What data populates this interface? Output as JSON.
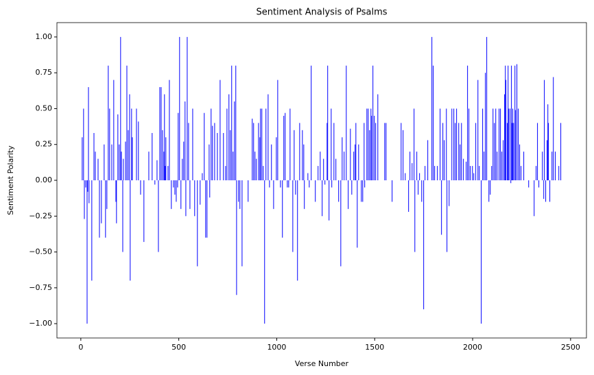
{
  "chart_data": {
    "type": "bar",
    "title": "Sentiment Analysis of Psalms",
    "xlabel": "Verse Number",
    "ylabel": "Sentiment Polarity",
    "color": "#0000ff",
    "xlim": [
      -122,
      2581
    ],
    "ylim": [
      -1.1,
      1.1
    ],
    "xticks": [
      0,
      500,
      1000,
      1500,
      2000,
      2500
    ],
    "yticks": [
      {
        "value": -1,
        "label": "−1.00"
      },
      {
        "value": -0.75,
        "label": "−0.75"
      },
      {
        "value": -0.5,
        "label": "−0.50"
      },
      {
        "value": -0.25,
        "label": "−0.25"
      },
      {
        "value": 0,
        "label": "0.00"
      },
      {
        "value": 0.25,
        "label": "0.25"
      },
      {
        "value": 0.5,
        "label": "0.50"
      },
      {
        "value": 0.75,
        "label": "0.75"
      },
      {
        "value": 1,
        "label": "1.00"
      }
    ],
    "x": [
      7,
      14,
      18,
      25,
      32,
      35,
      39,
      42,
      56,
      67,
      74,
      88,
      95,
      105,
      119,
      126,
      133,
      140,
      147,
      158,
      168,
      179,
      182,
      189,
      196,
      203,
      207,
      214,
      217,
      228,
      235,
      242,
      249,
      252,
      259,
      263,
      284,
      294,
      305,
      322,
      347,
      364,
      378,
      389,
      396,
      403,
      410,
      417,
      424,
      427,
      431,
      434,
      445,
      452,
      462,
      473,
      480,
      487,
      494,
      497,
      504,
      511,
      518,
      525,
      532,
      536,
      543,
      550,
      557,
      571,
      581,
      595,
      609,
      620,
      630,
      637,
      644,
      655,
      658,
      665,
      672,
      683,
      697,
      711,
      728,
      739,
      746,
      756,
      763,
      770,
      777,
      784,
      791,
      795,
      805,
      812,
      823,
      854,
      875,
      882,
      889,
      896,
      907,
      914,
      917,
      924,
      931,
      938,
      945,
      956,
      963,
      973,
      984,
      998,
      1005,
      1019,
      1029,
      1036,
      1043,
      1054,
      1061,
      1068,
      1082,
      1089,
      1096,
      1106,
      1117,
      1131,
      1138,
      1141,
      1159,
      1166,
      1176,
      1197,
      1211,
      1222,
      1232,
      1239,
      1246,
      1257,
      1260,
      1267,
      1278,
      1281,
      1292,
      1302,
      1316,
      1327,
      1334,
      1344,
      1355,
      1365,
      1376,
      1383,
      1393,
      1400,
      1404,
      1411,
      1418,
      1432,
      1439,
      1446,
      1449,
      1460,
      1467,
      1474,
      1481,
      1484,
      1491,
      1498,
      1505,
      1516,
      1551,
      1558,
      1589,
      1635,
      1645,
      1656,
      1673,
      1680,
      1691,
      1701,
      1705,
      1715,
      1722,
      1729,
      1740,
      1750,
      1757,
      1771,
      1792,
      1799,
      1806,
      1820,
      1834,
      1841,
      1848,
      1855,
      1866,
      1869,
      1880,
      1894,
      1904,
      1911,
      1918,
      1929,
      1936,
      1943,
      1953,
      1967,
      1974,
      1981,
      1988,
      1999,
      2006,
      2016,
      2027,
      2034,
      2044,
      2051,
      2058,
      2065,
      2072,
      2083,
      2090,
      2097,
      2104,
      2111,
      2118,
      2125,
      2135,
      2142,
      2149,
      2156,
      2163,
      2167,
      2170,
      2177,
      2181,
      2184,
      2191,
      2195,
      2198,
      2202,
      2205,
      2209,
      2216,
      2219,
      2226,
      2233,
      2240,
      2247,
      2261,
      2286,
      2314,
      2324,
      2331,
      2338,
      2356,
      2363,
      2366,
      2373,
      2380,
      2384,
      2387,
      2394,
      2405,
      2412,
      2422,
      2440,
      2450
    ],
    "values": [
      0.3,
      0.5,
      -0.27,
      -0.05,
      -1,
      -0.08,
      0.65,
      -0.16,
      -0.7,
      0.33,
      0.2,
      0.15,
      -0.4,
      -0.3,
      0.25,
      -0.4,
      -0.2,
      0.8,
      0.5,
      0.25,
      0.7,
      -0.15,
      -0.3,
      0.46,
      0.25,
      1,
      0.2,
      -0.5,
      0.15,
      0.27,
      0.8,
      0.35,
      0.6,
      -0.7,
      0.5,
      0.3,
      0.5,
      0.41,
      -0.1,
      -0.43,
      0.2,
      0.33,
      -0.03,
      0.14,
      -0.5,
      0.65,
      0.65,
      0.35,
      0.2,
      0.6,
      0.1,
      0.3,
      0.1,
      0.7,
      -0.2,
      -0.05,
      -0.1,
      -0.15,
      -0.05,
      0.47,
      1,
      -0.2,
      0.15,
      0.27,
      0.55,
      -0.25,
      1,
      0.4,
      -0.2,
      0.5,
      -0.25,
      -0.6,
      -0.17,
      0.05,
      0.47,
      -0.4,
      -0.4,
      0.25,
      -0.12,
      0.5,
      0.38,
      0.4,
      0.33,
      0.7,
      0.33,
      0.1,
      0.5,
      0.6,
      0.35,
      0.8,
      0.2,
      0.55,
      0.8,
      -0.8,
      -0.15,
      -0.2,
      -0.6,
      -0.15,
      0.43,
      0.4,
      0.2,
      0.15,
      0.4,
      0.3,
      0.5,
      0.5,
      0.1,
      -1,
      0.5,
      0.6,
      -0.05,
      0.25,
      -0.2,
      0.3,
      0.7,
      -0.05,
      -0.4,
      0.45,
      0.47,
      -0.05,
      -0.05,
      0.5,
      -0.5,
      0.35,
      -0.1,
      -0.7,
      0.4,
      0.35,
      0.25,
      -0.2,
      0.05,
      -0.05,
      0.8,
      -0.15,
      0.1,
      0.2,
      -0.25,
      0.15,
      -0.03,
      0.4,
      0.8,
      -0.28,
      0.5,
      -0.05,
      0.4,
      0.15,
      -0.15,
      -0.6,
      0.3,
      0.2,
      0.8,
      -0.2,
      0.36,
      -0.1,
      0.2,
      0.25,
      0.4,
      -0.47,
      0.25,
      -0.15,
      -0.15,
      0.4,
      -0.05,
      0.5,
      0.5,
      0.35,
      0.5,
      0.45,
      0.8,
      0.45,
      0.4,
      0.6,
      0.4,
      0.4,
      -0.15,
      0.4,
      0.35,
      0.05,
      -0.22,
      0.2,
      0.12,
      0.5,
      -0.5,
      0.2,
      -0.1,
      0.05,
      -0.15,
      -0.9,
      0.1,
      0.28,
      1,
      0.8,
      0.1,
      0.1,
      0.5,
      -0.38,
      0.4,
      0.28,
      0.5,
      -0.5,
      -0.18,
      0.5,
      0.5,
      0.4,
      0.5,
      0.4,
      0.25,
      0.4,
      0.15,
      0.13,
      0.8,
      0.5,
      0.1,
      0.1,
      0.05,
      0.4,
      0.7,
      0.1,
      -1,
      0.5,
      0.2,
      0.75,
      1,
      -0.15,
      -0.1,
      0.1,
      0.5,
      0.4,
      0.5,
      0.2,
      0.5,
      0.5,
      0.2,
      0.28,
      0.6,
      0.8,
      0.7,
      0.4,
      0.8,
      0.5,
      0.5,
      -0.02,
      0.8,
      0.4,
      0.5,
      0.4,
      0.8,
      0.49,
      0.81,
      0.5,
      0.25,
      0.1,
      0.2,
      -0.05,
      -0.25,
      0.1,
      0.4,
      -0.05,
      0.2,
      -0.13,
      0.7,
      -0.15,
      0.28,
      0.53,
      0.4,
      -0.15,
      0.2,
      0.72,
      0.2,
      0.1,
      0.4
    ]
  }
}
